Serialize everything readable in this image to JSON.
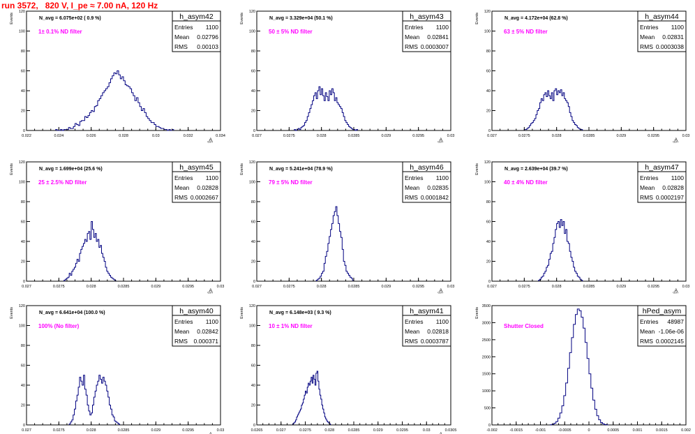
{
  "header": {
    "run_title": "run 3572,   820 V, I_pe ≈ 7.00 nA, 120 Hz"
  },
  "colors": {
    "hist": "#000080",
    "note": "#ff00ff",
    "title": "#ff0000",
    "axis": "#000000"
  },
  "chart_data": [
    {
      "type": "histogram",
      "name": "h_asym42",
      "stats": {
        "Entries": "1100",
        "Mean": "0.02796",
        "RMS": "0.00103"
      },
      "n_avg": "N_avg = 6.075e+02 ( 0.9 %)",
      "note": "1± 0.1% ND filter",
      "xlabel": "A_LED",
      "ylabel": "Events",
      "xlim": [
        0.022,
        0.034
      ],
      "ylim": [
        0,
        120
      ],
      "xticks": [
        0.022,
        0.024,
        0.026,
        0.028,
        0.03,
        0.032,
        0.034
      ],
      "xtick_labels": [
        "0.022",
        "0.024",
        "0.026",
        "0.028",
        "0.03",
        "0.032",
        "0.034"
      ],
      "yticks": [
        0,
        20,
        40,
        60,
        80,
        100,
        120
      ],
      "bins": {
        "start": 0.0238,
        "width": 0.0001,
        "counts": [
          1,
          0,
          0,
          1,
          0,
          1,
          1,
          1,
          3,
          2,
          2,
          4,
          7,
          6,
          5,
          9,
          10,
          10,
          14,
          13,
          15,
          18,
          20,
          19,
          24,
          25,
          30,
          32,
          35,
          38,
          40,
          42,
          44,
          48,
          52,
          55,
          58,
          57,
          60,
          56,
          52,
          54,
          50,
          46,
          45,
          44,
          42,
          38,
          35,
          30,
          33,
          28,
          24,
          20,
          22,
          18,
          14,
          12,
          10,
          8,
          8,
          6,
          4,
          4,
          3,
          2,
          2,
          1,
          1,
          0,
          1,
          0,
          1
        ]
      }
    },
    {
      "type": "histogram",
      "name": "h_asym43",
      "stats": {
        "Entries": "1100",
        "Mean": "0.02841",
        "RMS": "0.0003007"
      },
      "n_avg": "N_avg = 3.329e+04 (50.1 %)",
      "note": "50 ± 5% ND filter",
      "xlabel": "A_LED",
      "ylabel": "Events",
      "xlim": [
        0.027,
        0.03
      ],
      "ylim": [
        0,
        120
      ],
      "xticks": [
        0.027,
        0.0275,
        0.028,
        0.0285,
        0.029,
        0.0295,
        0.03
      ],
      "xtick_labels": [
        "0.027",
        "0.0275",
        "0.028",
        "0.0285",
        "0.029",
        "0.0295",
        "0.03"
      ],
      "yticks": [
        0,
        20,
        40,
        60,
        80,
        100,
        120
      ],
      "bins": {
        "start": 0.02758,
        "width": 2e-05,
        "counts": [
          1,
          0,
          1,
          2,
          1,
          3,
          4,
          5,
          8,
          10,
          14,
          18,
          22,
          26,
          30,
          35,
          38,
          32,
          40,
          44,
          36,
          42,
          35,
          30,
          38,
          34,
          30,
          40,
          36,
          42,
          38,
          30,
          33,
          28,
          26,
          24,
          22,
          18,
          14,
          10,
          8,
          6,
          4,
          3,
          2,
          1,
          1,
          0,
          1
        ]
      }
    },
    {
      "type": "histogram",
      "name": "h_asym44",
      "stats": {
        "Entries": "1100",
        "Mean": "0.02831",
        "RMS": "0.0003038"
      },
      "n_avg": "N_avg = 4.172e+04 (62.8 %)",
      "note": "63 ± 5% ND filter",
      "xlabel": "A_LED",
      "ylabel": "Events",
      "xlim": [
        0.027,
        0.03
      ],
      "ylim": [
        0,
        120
      ],
      "xticks": [
        0.027,
        0.0275,
        0.028,
        0.0285,
        0.029,
        0.0295,
        0.03
      ],
      "xtick_labels": [
        "0.027",
        "0.0275",
        "0.028",
        "0.0285",
        "0.029",
        "0.0295",
        "0.03"
      ],
      "yticks": [
        0,
        20,
        40,
        60,
        80,
        100,
        120
      ],
      "bins": {
        "start": 0.0275,
        "width": 2e-05,
        "counts": [
          1,
          1,
          2,
          3,
          5,
          7,
          8,
          10,
          12,
          16,
          20,
          22,
          28,
          32,
          30,
          36,
          38,
          34,
          40,
          35,
          32,
          38,
          30,
          40,
          42,
          36,
          40,
          38,
          41,
          35,
          38,
          32,
          30,
          28,
          24,
          18,
          14,
          10,
          8,
          6,
          5,
          3,
          2,
          1,
          1
        ]
      }
    },
    {
      "type": "histogram",
      "name": "h_asym45",
      "stats": {
        "Entries": "1100",
        "Mean": "0.02828",
        "RMS": "0.0002667"
      },
      "n_avg": "N_avg = 1.699e+04 (25.6 %)",
      "note": "25 ± 2.5% ND filter",
      "xlabel": "A_LED",
      "ylabel": "Events",
      "xlim": [
        0.027,
        0.03
      ],
      "ylim": [
        0,
        120
      ],
      "xticks": [
        0.027,
        0.0275,
        0.028,
        0.0285,
        0.029,
        0.0295,
        0.03
      ],
      "xtick_labels": [
        "0.027",
        "0.0275",
        "0.028",
        "0.0285",
        "0.029",
        "0.0295",
        "0.03"
      ],
      "yticks": [
        0,
        20,
        40,
        60,
        80,
        100,
        120
      ],
      "bins": {
        "start": 0.02758,
        "width": 2e-05,
        "counts": [
          1,
          2,
          3,
          4,
          8,
          6,
          10,
          12,
          14,
          18,
          22,
          20,
          28,
          32,
          35,
          38,
          42,
          40,
          48,
          50,
          42,
          60,
          52,
          44,
          48,
          40,
          42,
          34,
          36,
          28,
          24,
          20,
          14,
          10,
          8,
          6,
          4,
          3,
          2,
          1
        ]
      }
    },
    {
      "type": "histogram",
      "name": "h_asym46",
      "stats": {
        "Entries": "1100",
        "Mean": "0.02835",
        "RMS": "0.0001842"
      },
      "n_avg": "N_avg = 5.241e+04 (78.9 %)",
      "note": "79 ± 5% ND filter",
      "xlabel": "A_LED",
      "ylabel": "Events",
      "xlim": [
        0.027,
        0.03
      ],
      "ylim": [
        0,
        120
      ],
      "xticks": [
        0.027,
        0.0275,
        0.028,
        0.0285,
        0.029,
        0.0295,
        0.03
      ],
      "xtick_labels": [
        "0.027",
        "0.0275",
        "0.028",
        "0.0285",
        "0.029",
        "0.0295",
        "0.03"
      ],
      "yticks": [
        0,
        20,
        40,
        60,
        80,
        100,
        120
      ],
      "bins": {
        "start": 0.02792,
        "width": 2e-05,
        "counts": [
          1,
          2,
          3,
          5,
          8,
          10,
          18,
          25,
          30,
          38,
          45,
          52,
          58,
          66,
          70,
          75,
          66,
          58,
          50,
          44,
          32,
          20,
          16,
          10,
          8,
          6,
          4,
          3,
          1
        ]
      }
    },
    {
      "type": "histogram",
      "name": "h_asym47",
      "stats": {
        "Entries": "1100",
        "Mean": "0.02828",
        "RMS": "0.0002197"
      },
      "n_avg": "N_avg = 2.639e+04 (39.7 %)",
      "note": "40 ± 4% ND filter",
      "xlabel": "A_LED",
      "ylabel": "Events",
      "xlim": [
        0.027,
        0.03
      ],
      "ylim": [
        0,
        120
      ],
      "xticks": [
        0.027,
        0.0275,
        0.028,
        0.0285,
        0.029,
        0.0295,
        0.03
      ],
      "xtick_labels": [
        "0.027",
        "0.0275",
        "0.028",
        "0.0285",
        "0.029",
        "0.0295",
        "0.03"
      ],
      "yticks": [
        0,
        20,
        40,
        60,
        80,
        100,
        120
      ],
      "bins": {
        "start": 0.02772,
        "width": 2e-05,
        "counts": [
          1,
          2,
          4,
          5,
          8,
          10,
          14,
          16,
          22,
          28,
          30,
          38,
          44,
          52,
          58,
          60,
          54,
          62,
          56,
          60,
          48,
          52,
          40,
          38,
          30,
          24,
          20,
          14,
          10,
          8,
          5,
          4,
          2,
          1
        ]
      }
    },
    {
      "type": "histogram",
      "name": "h_asym40",
      "stats": {
        "Entries": "1100",
        "Mean": "0.02842",
        "RMS": "0.000371"
      },
      "n_avg": "N_avg = 6.641e+04 (100.0 %)",
      "note": "100% (No filter)",
      "xlabel": "A_LED",
      "ylabel": "Events",
      "xlim": [
        0.027,
        0.03
      ],
      "ylim": [
        0,
        120
      ],
      "xticks": [
        0.027,
        0.0275,
        0.028,
        0.0285,
        0.029,
        0.0295,
        0.03
      ],
      "xtick_labels": [
        "0.027",
        "0.0275",
        "0.028",
        "0.0285",
        "0.029",
        "0.0295",
        "0.03"
      ],
      "yticks": [
        0,
        20,
        40,
        60,
        80,
        100,
        120
      ],
      "bins": {
        "start": 0.02766,
        "width": 2e-05,
        "counts": [
          1,
          3,
          5,
          10,
          16,
          24,
          30,
          38,
          48,
          44,
          40,
          50,
          36,
          30,
          20,
          14,
          10,
          12,
          20,
          28,
          34,
          40,
          44,
          50,
          46,
          42,
          48,
          44,
          40,
          34,
          28,
          20,
          16,
          10,
          8,
          4,
          3,
          2,
          1
        ]
      }
    },
    {
      "type": "histogram",
      "name": "h_asym41",
      "stats": {
        "Entries": "1100",
        "Mean": "0.02818",
        "RMS": "0.0003787"
      },
      "n_avg": "N_avg = 6.148e+03 ( 9.3 %)",
      "note": "10 ± 1% ND filter",
      "xlabel": "A_LED",
      "ylabel": "Events",
      "xlim": [
        0.0265,
        0.0305
      ],
      "ylim": [
        0,
        120
      ],
      "xticks": [
        0.0265,
        0.027,
        0.0275,
        0.028,
        0.0285,
        0.029,
        0.0295,
        0.03,
        0.0305
      ],
      "xtick_labels": [
        "0.0265",
        "0.027",
        "0.0275",
        "0.028",
        "0.0285",
        "0.029",
        "0.0295",
        "0.03",
        "0.0305"
      ],
      "yticks": [
        0,
        20,
        40,
        60,
        80,
        100,
        120
      ],
      "bins": {
        "start": 0.02724,
        "width": 2e-05,
        "counts": [
          1,
          2,
          3,
          5,
          8,
          10,
          12,
          14,
          16,
          20,
          22,
          26,
          30,
          34,
          32,
          38,
          42,
          40,
          44,
          48,
          42,
          50,
          46,
          40,
          52,
          54,
          44,
          36,
          30,
          26,
          20,
          16,
          12,
          8,
          6,
          4,
          3,
          2,
          1
        ]
      }
    },
    {
      "type": "histogram",
      "name": "hPed_asym",
      "stats": {
        "Entries": "48987",
        "Mean": "-1.06e-06",
        "RMS": "0.0002145"
      },
      "n_avg": "",
      "note": "Shutter Closed",
      "xlabel": "",
      "ylabel": "Events",
      "xlim": [
        -0.002,
        0.002
      ],
      "ylim": [
        0,
        3500
      ],
      "xticks": [
        -0.002,
        -0.0015,
        -0.001,
        -0.0005,
        0,
        0.0005,
        0.001,
        0.0015,
        0.002
      ],
      "xtick_labels": [
        "-0.002",
        "-0.0015",
        "-0.001",
        "-0.0005",
        "0",
        "0.0005",
        "0.001",
        "0.0015",
        "0.002"
      ],
      "yticks": [
        0,
        500,
        1000,
        1500,
        2000,
        2500,
        3000,
        3500
      ],
      "bins": {
        "start": -0.0008,
        "width": 4e-05,
        "counts": [
          5,
          20,
          50,
          100,
          200,
          350,
          560,
          860,
          1230,
          1660,
          2120,
          2560,
          2950,
          3240,
          3400,
          3350,
          3160,
          2840,
          2420,
          1950,
          1500,
          1080,
          730,
          460,
          270,
          150,
          70,
          30,
          10,
          3
        ]
      }
    }
  ]
}
